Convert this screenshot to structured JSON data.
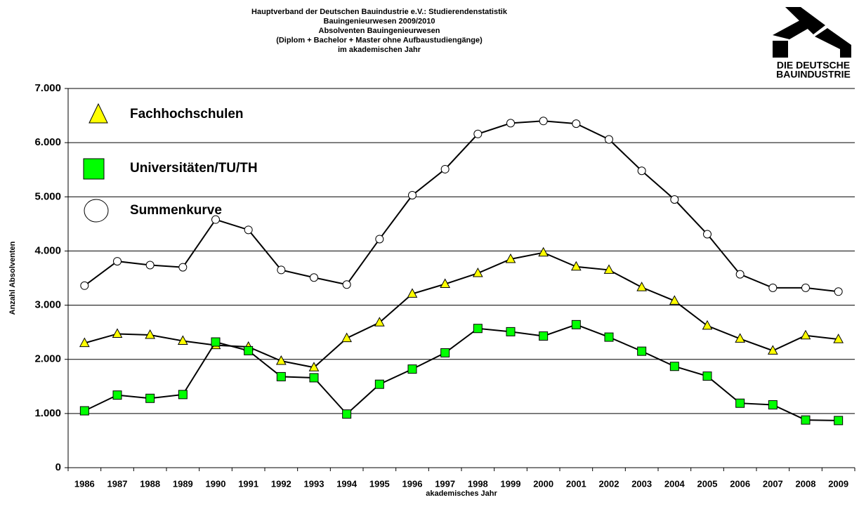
{
  "chart_data": {
    "type": "line",
    "title": [
      "Hauptverband der Deutschen Bauindustrie e.V.: Studierendenstatistik",
      "Bauingenieurwesen 2009/2010",
      "Absolventen Bauingenieurwesen",
      "(Diplom + Bachelor + Master ohne Aufbaustudiengänge)",
      "im akademischen Jahr"
    ],
    "logo": [
      "DIE DEUTSCHE",
      "BAUINDUSTRIE"
    ],
    "xlabel": "akademisches Jahr",
    "ylabel": "Anzahl Absolventen",
    "categories": [
      "1986",
      "1987",
      "1988",
      "1989",
      "1990",
      "1991",
      "1992",
      "1993",
      "1994",
      "1995",
      "1996",
      "1997",
      "1998",
      "1999",
      "2000",
      "2001",
      "2002",
      "2003",
      "2004",
      "2005",
      "2006",
      "2007",
      "2008",
      "2009"
    ],
    "series": [
      {
        "name": "Fachhochschulen",
        "color": "#ffff00",
        "marker": "triangle",
        "values": [
          2300,
          2470,
          2450,
          2340,
          2260,
          2230,
          1970,
          1850,
          2390,
          2680,
          3210,
          3390,
          3590,
          3850,
          3970,
          3710,
          3650,
          3330,
          3080,
          2620,
          2380,
          2160,
          2440,
          2370
        ]
      },
      {
        "name": "Universitäten/TU/TH",
        "color": "#00ff00",
        "marker": "square",
        "values": [
          1050,
          1340,
          1280,
          1350,
          2320,
          2160,
          1680,
          1660,
          990,
          1540,
          1820,
          2120,
          2570,
          2510,
          2430,
          2640,
          2410,
          2150,
          1870,
          1690,
          1190,
          1160,
          880,
          870
        ]
      },
      {
        "name": "Summenkurve",
        "color": "#ffffff",
        "marker": "circle",
        "values": [
          3360,
          3810,
          3740,
          3700,
          4580,
          4390,
          3650,
          3510,
          3380,
          4220,
          5030,
          5510,
          6160,
          6360,
          6400,
          6350,
          6060,
          5480,
          4950,
          4310,
          3570,
          3320,
          3320,
          3250
        ]
      }
    ],
    "ylim": [
      0,
      7000
    ],
    "yticks": [
      0,
      {
        "value": 1000,
        "label": "1.000"
      },
      {
        "value": 2000,
        "label": "2.000"
      },
      {
        "value": 3000,
        "label": "3.000"
      },
      {
        "value": 4000,
        "label": "4.000"
      },
      {
        "value": 5000,
        "label": "5.000"
      },
      {
        "value": 6000,
        "label": "6.000"
      },
      {
        "value": 7000,
        "label": "7.000"
      }
    ],
    "grid": true,
    "legend": "upper left"
  }
}
